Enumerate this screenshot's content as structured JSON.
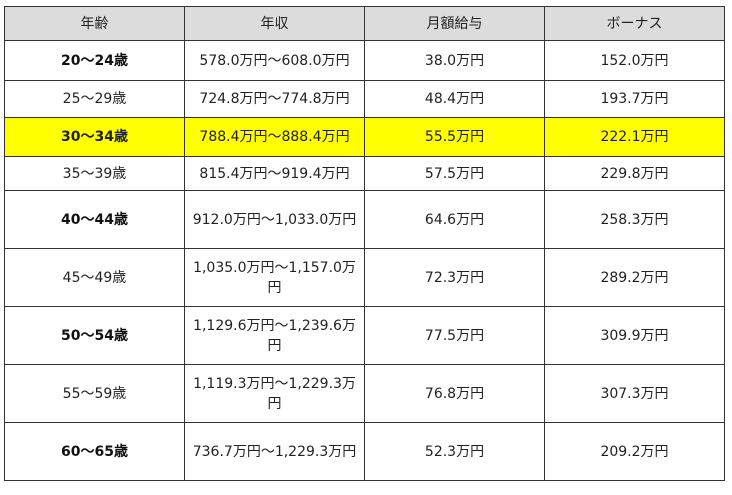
{
  "table": {
    "headers": [
      "年齢",
      "年収",
      "月額給与",
      "ボーナス"
    ],
    "rows": [
      {
        "age": "20～24歳",
        "income": "578.0万円～608.0万円",
        "monthly": "38.0万円",
        "bonus": "152.0万円"
      },
      {
        "age": "25～29歳",
        "income": "724.8万円～774.8万円",
        "monthly": "48.4万円",
        "bonus": "193.7万円"
      },
      {
        "age": "30～34歳",
        "income": "788.4万円～888.4万円",
        "monthly": "55.5万円",
        "bonus": "222.1万円"
      },
      {
        "age": "35～39歳",
        "income": "815.4万円～919.4万円",
        "monthly": "57.5万円",
        "bonus": "229.8万円"
      },
      {
        "age": "40～44歳",
        "income": "912.0万円～1,033.0万円",
        "monthly": "64.6万円",
        "bonus": "258.3万円"
      },
      {
        "age": "45～49歳",
        "income": "1,035.0万円～1,157.0万円",
        "monthly": "72.3万円",
        "bonus": "289.2万円"
      },
      {
        "age": "50～54歳",
        "income": "1,129.6万円～1,239.6万円",
        "monthly": "77.5万円",
        "bonus": "309.9万円"
      },
      {
        "age": "55～59歳",
        "income": "1,119.3万円～1,229.3万円",
        "monthly": "76.8万円",
        "bonus": "307.3万円"
      },
      {
        "age": "60～65歳",
        "income": "736.7万円～1,229.3万円",
        "monthly": "52.3万円",
        "bonus": "209.2万円"
      }
    ],
    "highlight_color": "#ffff00",
    "header_background": "#dcdcdc"
  }
}
